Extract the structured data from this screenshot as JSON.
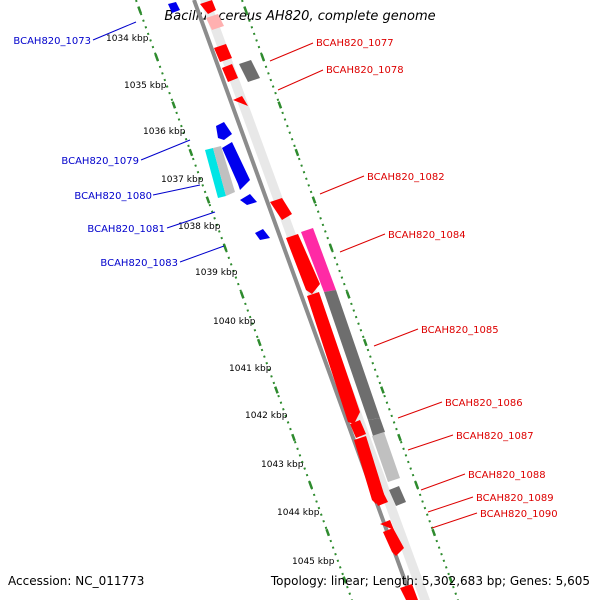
{
  "title": "Bacillus cereus AH820, complete genome",
  "footer": {
    "accession": "Accession: NC_011773",
    "summary": "Topology: linear; Length: 5,302,683 bp; Genes: 5,605"
  },
  "colors": {
    "backbone": "#8c8c8c",
    "tick": "#2e8b2e",
    "blue_label": "#0000cc",
    "red_label": "#dd0000",
    "gene_red": "#ff0000",
    "gene_blue": "#0000ee",
    "gene_cyan": "#00e5e5",
    "gene_gray": "#6e6e6e",
    "gene_lightgray": "#c0c0c0",
    "gene_magenta": "#ff2aa5"
  },
  "scale_labels": [
    "1034 kbp",
    "1035 kbp",
    "1036 kbp",
    "1037 kbp",
    "1038 kbp",
    "1039 kbp",
    "1040 kbp",
    "1041 kbp",
    "1042 kbp",
    "1043 kbp",
    "1044 kbp",
    "1045 kbp"
  ],
  "left_labels": [
    "BCAH820_1073",
    "BCAH820_1079",
    "BCAH820_1080",
    "BCAH820_1081",
    "BCAH820_1083"
  ],
  "right_labels": [
    "BCAH820_1077",
    "BCAH820_1078",
    "BCAH820_1082",
    "BCAH820_1084",
    "BCAH820_1085",
    "BCAH820_1086",
    "BCAH820_1087",
    "BCAH820_1088",
    "BCAH820_1089",
    "BCAH820_1090"
  ]
}
